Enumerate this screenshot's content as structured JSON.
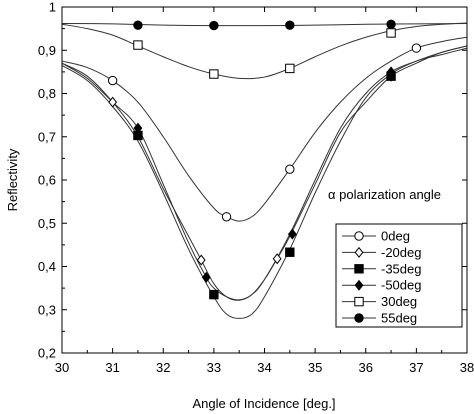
{
  "chart_data": {
    "type": "line",
    "title": "",
    "xlabel": "Angle of Incidence [deg.]",
    "ylabel": "Reflectivity",
    "xlim": [
      30,
      38
    ],
    "ylim": [
      0.2,
      1.0
    ],
    "x_ticks": [
      30,
      31,
      32,
      33,
      34,
      35,
      36,
      37,
      38
    ],
    "y_ticks": [
      0.2,
      0.3,
      0.4,
      0.5,
      0.6,
      0.7,
      0.8,
      0.9,
      1.0
    ],
    "x_tick_labels": [
      "30",
      "31",
      "32",
      "33",
      "34",
      "35",
      "36",
      "37",
      "38"
    ],
    "y_tick_labels": [
      "0,2",
      "0,3",
      "0,4",
      "0,5",
      "0,6",
      "0,7",
      "0,8",
      "0,9",
      "1"
    ],
    "grid": false,
    "annotation": "α polarization angle",
    "legend_position": "right",
    "series": [
      {
        "name": "0deg",
        "marker": "open-circle",
        "x": [
          30,
          30.5,
          31,
          31.5,
          32,
          32.5,
          33,
          33.25,
          33.5,
          33.75,
          34,
          34.5,
          35,
          35.5,
          36,
          36.5,
          37,
          37.5,
          38
        ],
        "y": [
          0.875,
          0.86,
          0.83,
          0.78,
          0.7,
          0.61,
          0.535,
          0.515,
          0.505,
          0.515,
          0.545,
          0.625,
          0.71,
          0.78,
          0.835,
          0.875,
          0.905,
          0.92,
          0.93
        ],
        "markers_x": [
          31,
          33.25,
          34.5,
          37
        ],
        "markers_y": [
          0.83,
          0.515,
          0.625,
          0.905
        ]
      },
      {
        "name": "-20deg",
        "marker": "open-diamond",
        "x": [
          30,
          30.5,
          31,
          31.5,
          32,
          32.5,
          32.75,
          33,
          33.25,
          33.5,
          33.75,
          34,
          34.25,
          34.5,
          35,
          35.5,
          36,
          36.5,
          37,
          37.5,
          38
        ],
        "y": [
          0.87,
          0.84,
          0.78,
          0.7,
          0.58,
          0.47,
          0.415,
          0.36,
          0.33,
          0.322,
          0.335,
          0.37,
          0.418,
          0.47,
          0.59,
          0.71,
          0.78,
          0.84,
          0.87,
          0.895,
          0.91
        ],
        "markers_x": [
          31,
          32.75,
          34.25,
          36.5
        ],
        "markers_y": [
          0.78,
          0.415,
          0.418,
          0.84
        ]
      },
      {
        "name": "-35deg",
        "marker": "filled-square",
        "x": [
          30,
          30.5,
          31,
          31.5,
          32,
          32.5,
          33,
          33.25,
          33.5,
          33.75,
          34,
          34.5,
          35,
          35.5,
          36,
          36.5,
          37,
          37.5,
          38
        ],
        "y": [
          0.865,
          0.83,
          0.77,
          0.69,
          0.57,
          0.44,
          0.33,
          0.29,
          0.28,
          0.29,
          0.33,
          0.44,
          0.57,
          0.69,
          0.79,
          0.845,
          0.875,
          0.89,
          0.905
        ],
        "markers_x": [
          31.5,
          33,
          34.5,
          36.5
        ],
        "markers_y": [
          0.703,
          0.335,
          0.433,
          0.84
        ]
      },
      {
        "name": "-50deg",
        "marker": "filled-diamond",
        "x": [
          30,
          30.5,
          31,
          31.5,
          32,
          32.5,
          32.85,
          33,
          33.25,
          33.5,
          33.75,
          34,
          34.5,
          35,
          35.5,
          36,
          36.5,
          37,
          37.5,
          38
        ],
        "y": [
          0.87,
          0.835,
          0.78,
          0.72,
          0.59,
          0.455,
          0.375,
          0.35,
          0.33,
          0.323,
          0.335,
          0.37,
          0.475,
          0.6,
          0.72,
          0.8,
          0.85,
          0.875,
          0.895,
          0.91
        ],
        "markers_x": [
          31.5,
          32.85,
          34.55,
          36.5
        ],
        "markers_y": [
          0.72,
          0.375,
          0.475,
          0.85
        ]
      },
      {
        "name": "30deg",
        "marker": "open-square",
        "x": [
          30,
          30.5,
          31,
          31.5,
          32,
          32.5,
          33,
          33.5,
          34,
          34.5,
          35,
          35.5,
          36,
          36.5,
          37,
          37.5,
          38
        ],
        "y": [
          0.96,
          0.95,
          0.935,
          0.91,
          0.885,
          0.862,
          0.845,
          0.835,
          0.838,
          0.858,
          0.885,
          0.91,
          0.93,
          0.945,
          0.955,
          0.96,
          0.963
        ],
        "markers_x": [
          31.5,
          33,
          34.5,
          36.5
        ],
        "markers_y": [
          0.912,
          0.845,
          0.858,
          0.94
        ]
      },
      {
        "name": "55deg",
        "marker": "filled-circle",
        "x": [
          30,
          31,
          32,
          33,
          34,
          35,
          36,
          37,
          38
        ],
        "y": [
          0.962,
          0.961,
          0.958,
          0.957,
          0.957,
          0.958,
          0.96,
          0.961,
          0.962
        ],
        "markers_x": [
          31.5,
          33,
          34.5,
          36.5
        ],
        "markers_y": [
          0.958,
          0.957,
          0.958,
          0.96
        ]
      }
    ]
  }
}
